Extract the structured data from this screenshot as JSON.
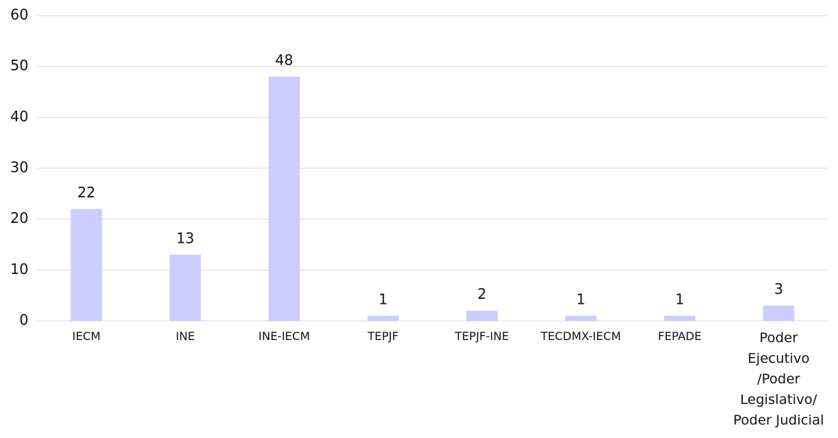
{
  "chart_data": {
    "type": "bar",
    "categories": [
      "IECM",
      "INE",
      "INE-IECM",
      "TEPJF",
      "TEPJF-INE",
      "TECDMX-IECM",
      "FEPADE",
      "Poder\nEjecutivo\n/Poder\nLegislativo/\nPoder Judicial"
    ],
    "values": [
      22,
      13,
      48,
      1,
      2,
      1,
      1,
      3
    ],
    "color": "#ccccff",
    "ylim": [
      0,
      60
    ],
    "yticks": [
      0,
      10,
      20,
      30,
      40,
      50,
      60
    ],
    "grid": true
  }
}
